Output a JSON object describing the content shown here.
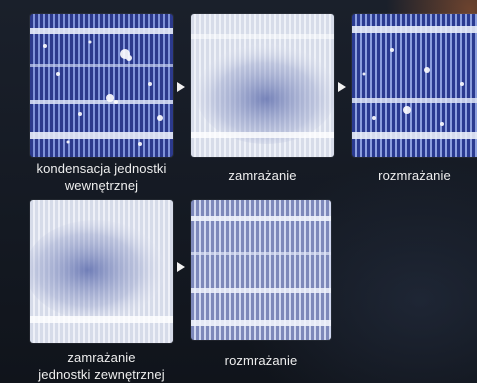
{
  "row1": {
    "captions": [
      {
        "lines": [
          "kondensacja jednostki",
          "wewnętrznej"
        ]
      },
      {
        "lines": [
          "zamrażanie"
        ]
      },
      {
        "lines": [
          "rozmrażanie"
        ]
      }
    ]
  },
  "row2": {
    "captions": [
      {
        "lines": [
          "zamrażanie",
          "jednostki zewnętrznej"
        ]
      },
      {
        "lines": [
          "rozmrażanie"
        ]
      }
    ]
  }
}
